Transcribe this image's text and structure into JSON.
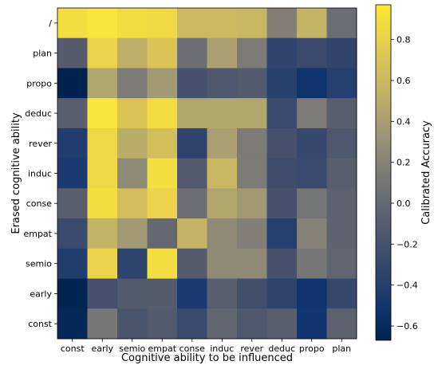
{
  "chart_data": {
    "type": "heatmap",
    "title": "",
    "xlabel": "Cognitive ability to be influenced",
    "ylabel": "Erased cognitive ability",
    "x_categories": [
      "const",
      "early",
      "semio",
      "empat",
      "conse",
      "induc",
      "rever",
      "deduc",
      "propo",
      "plan"
    ],
    "y_categories": [
      "/",
      "plan",
      "propo",
      "deduc",
      "rever",
      "induc",
      "conse",
      "empat",
      "semio",
      "early",
      "const"
    ],
    "values": [
      [
        0.9,
        0.95,
        0.88,
        0.86,
        0.6,
        0.6,
        0.58,
        0.18,
        0.55,
        0.05
      ],
      [
        -0.1,
        0.82,
        0.52,
        0.7,
        0.05,
        0.4,
        0.15,
        -0.35,
        -0.28,
        -0.33
      ],
      [
        -0.68,
        0.45,
        0.15,
        0.35,
        -0.2,
        -0.15,
        -0.12,
        -0.38,
        -0.52,
        -0.4
      ],
      [
        -0.08,
        0.95,
        0.7,
        0.88,
        0.45,
        0.45,
        0.45,
        -0.28,
        0.15,
        -0.08
      ],
      [
        -0.42,
        0.85,
        0.5,
        0.65,
        -0.35,
        0.4,
        0.15,
        -0.2,
        -0.3,
        -0.15
      ],
      [
        -0.45,
        0.85,
        0.25,
        0.9,
        -0.12,
        0.58,
        0.15,
        -0.25,
        -0.28,
        -0.08
      ],
      [
        -0.08,
        0.9,
        0.65,
        0.82,
        0.05,
        0.45,
        0.35,
        -0.2,
        0.1,
        -0.05
      ],
      [
        -0.28,
        0.55,
        0.35,
        0.0,
        0.55,
        0.25,
        0.18,
        -0.4,
        0.2,
        -0.05
      ],
      [
        -0.42,
        0.82,
        -0.35,
        0.9,
        -0.1,
        0.25,
        0.25,
        -0.2,
        0.12,
        -0.02
      ],
      [
        -0.65,
        -0.2,
        -0.12,
        -0.1,
        -0.45,
        -0.08,
        -0.22,
        -0.35,
        -0.52,
        -0.3
      ],
      [
        -0.62,
        0.12,
        -0.18,
        -0.12,
        -0.28,
        -0.02,
        -0.15,
        -0.08,
        -0.5,
        -0.05
      ]
    ],
    "colormap": "cividis",
    "vmin": -0.67,
    "vmax": 0.97,
    "colorbar": {
      "label": "Calibrated Accuracy",
      "ticks": [
        -0.6,
        -0.4,
        -0.2,
        0.0,
        0.2,
        0.4,
        0.6,
        0.8
      ],
      "tick_labels": [
        "−0.6",
        "−0.4",
        "−0.2",
        "0.0",
        "0.2",
        "0.4",
        "0.6",
        "0.8"
      ]
    },
    "grid": false
  }
}
